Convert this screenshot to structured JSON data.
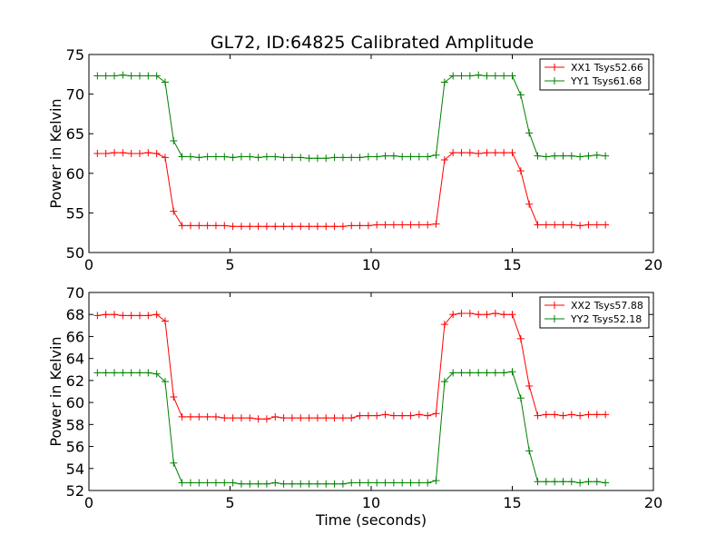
{
  "title": "GL72, ID:64825 Calibrated Amplitude",
  "chart_data": [
    {
      "type": "line",
      "ylabel": "Power in Kelvin",
      "xlabel": "",
      "xlim": [
        0,
        20
      ],
      "ylim": [
        50,
        75
      ],
      "xticks": [
        0,
        5,
        10,
        15,
        20
      ],
      "yticks": [
        50,
        55,
        60,
        65,
        70,
        75
      ],
      "legend": "top-right",
      "grid": false,
      "x": [
        0.3,
        0.6,
        0.9,
        1.2,
        1.5,
        1.8,
        2.1,
        2.4,
        2.7,
        3.0,
        3.3,
        3.6,
        3.9,
        4.2,
        4.5,
        4.8,
        5.1,
        5.4,
        5.7,
        6.0,
        6.3,
        6.6,
        6.9,
        7.2,
        7.5,
        7.8,
        8.1,
        8.4,
        8.7,
        9.0,
        9.3,
        9.6,
        9.9,
        10.2,
        10.5,
        10.8,
        11.1,
        11.4,
        11.7,
        12.0,
        12.3,
        12.6,
        12.9,
        13.2,
        13.5,
        13.8,
        14.1,
        14.4,
        14.7,
        15.0,
        15.3,
        15.6,
        15.9,
        16.2,
        16.5,
        16.8,
        17.1,
        17.4,
        17.7,
        18.0,
        18.3
      ],
      "series": [
        {
          "name": "XX1 Tsys52.66",
          "color": "#ff0000",
          "values": [
            62.5,
            62.5,
            62.6,
            62.6,
            62.5,
            62.5,
            62.6,
            62.5,
            62.0,
            55.2,
            53.4,
            53.4,
            53.4,
            53.4,
            53.4,
            53.4,
            53.3,
            53.3,
            53.3,
            53.3,
            53.3,
            53.3,
            53.3,
            53.3,
            53.3,
            53.3,
            53.3,
            53.3,
            53.3,
            53.3,
            53.4,
            53.4,
            53.4,
            53.5,
            53.5,
            53.5,
            53.5,
            53.5,
            53.5,
            53.5,
            53.6,
            61.7,
            62.6,
            62.6,
            62.6,
            62.5,
            62.6,
            62.6,
            62.6,
            62.6,
            60.3,
            56.1,
            53.5,
            53.5,
            53.5,
            53.5,
            53.5,
            53.4,
            53.5,
            53.5,
            53.5
          ]
        },
        {
          "name": "YY1 Tsys61.68",
          "color": "#008000",
          "values": [
            72.3,
            72.3,
            72.3,
            72.4,
            72.3,
            72.3,
            72.3,
            72.3,
            71.5,
            64.1,
            62.1,
            62.1,
            62.0,
            62.1,
            62.1,
            62.1,
            62.0,
            62.1,
            62.1,
            62.0,
            62.1,
            62.1,
            62.0,
            62.0,
            62.0,
            61.9,
            61.9,
            61.9,
            62.0,
            62.0,
            62.0,
            62.0,
            62.1,
            62.1,
            62.2,
            62.2,
            62.1,
            62.1,
            62.1,
            62.1,
            62.3,
            71.5,
            72.3,
            72.3,
            72.3,
            72.4,
            72.3,
            72.3,
            72.3,
            72.3,
            69.9,
            65.1,
            62.2,
            62.1,
            62.2,
            62.2,
            62.2,
            62.1,
            62.2,
            62.3,
            62.2
          ]
        }
      ]
    },
    {
      "type": "line",
      "ylabel": "Power in Kelvin",
      "xlabel": "Time (seconds)",
      "xlim": [
        0,
        20
      ],
      "ylim": [
        52,
        70
      ],
      "xticks": [
        0,
        5,
        10,
        15,
        20
      ],
      "yticks": [
        52,
        54,
        56,
        58,
        60,
        62,
        64,
        66,
        68,
        70
      ],
      "legend": "top-right",
      "grid": false,
      "x": [
        0.3,
        0.6,
        0.9,
        1.2,
        1.5,
        1.8,
        2.1,
        2.4,
        2.7,
        3.0,
        3.3,
        3.6,
        3.9,
        4.2,
        4.5,
        4.8,
        5.1,
        5.4,
        5.7,
        6.0,
        6.3,
        6.6,
        6.9,
        7.2,
        7.5,
        7.8,
        8.1,
        8.4,
        8.7,
        9.0,
        9.3,
        9.6,
        9.9,
        10.2,
        10.5,
        10.8,
        11.1,
        11.4,
        11.7,
        12.0,
        12.3,
        12.6,
        12.9,
        13.2,
        13.5,
        13.8,
        14.1,
        14.4,
        14.7,
        15.0,
        15.3,
        15.6,
        15.9,
        16.2,
        16.5,
        16.8,
        17.1,
        17.4,
        17.7,
        18.0,
        18.3
      ],
      "series": [
        {
          "name": "XX2 Tsys57.88",
          "color": "#ff0000",
          "values": [
            67.9,
            68.0,
            68.0,
            67.9,
            67.9,
            67.9,
            67.9,
            68.0,
            67.4,
            60.5,
            58.7,
            58.7,
            58.7,
            58.7,
            58.7,
            58.6,
            58.6,
            58.6,
            58.6,
            58.5,
            58.5,
            58.7,
            58.6,
            58.6,
            58.6,
            58.6,
            58.6,
            58.6,
            58.6,
            58.6,
            58.6,
            58.8,
            58.8,
            58.8,
            58.9,
            58.8,
            58.8,
            58.8,
            58.9,
            58.8,
            59.0,
            67.1,
            68.0,
            68.1,
            68.1,
            68.0,
            68.0,
            68.1,
            68.0,
            68.0,
            65.8,
            61.5,
            58.8,
            58.9,
            58.9,
            58.8,
            58.9,
            58.8,
            58.9,
            58.9,
            58.9
          ]
        },
        {
          "name": "YY2 Tsys52.18",
          "color": "#008000",
          "values": [
            62.7,
            62.7,
            62.7,
            62.7,
            62.7,
            62.7,
            62.7,
            62.6,
            61.9,
            54.5,
            52.7,
            52.7,
            52.7,
            52.7,
            52.7,
            52.7,
            52.7,
            52.6,
            52.6,
            52.6,
            52.6,
            52.7,
            52.6,
            52.6,
            52.6,
            52.6,
            52.6,
            52.6,
            52.6,
            52.6,
            52.7,
            52.7,
            52.7,
            52.7,
            52.7,
            52.7,
            52.7,
            52.7,
            52.7,
            52.7,
            52.9,
            61.9,
            62.7,
            62.7,
            62.7,
            62.7,
            62.7,
            62.7,
            62.7,
            62.8,
            60.4,
            55.6,
            52.8,
            52.8,
            52.8,
            52.8,
            52.8,
            52.7,
            52.8,
            52.8,
            52.7
          ]
        }
      ]
    }
  ]
}
